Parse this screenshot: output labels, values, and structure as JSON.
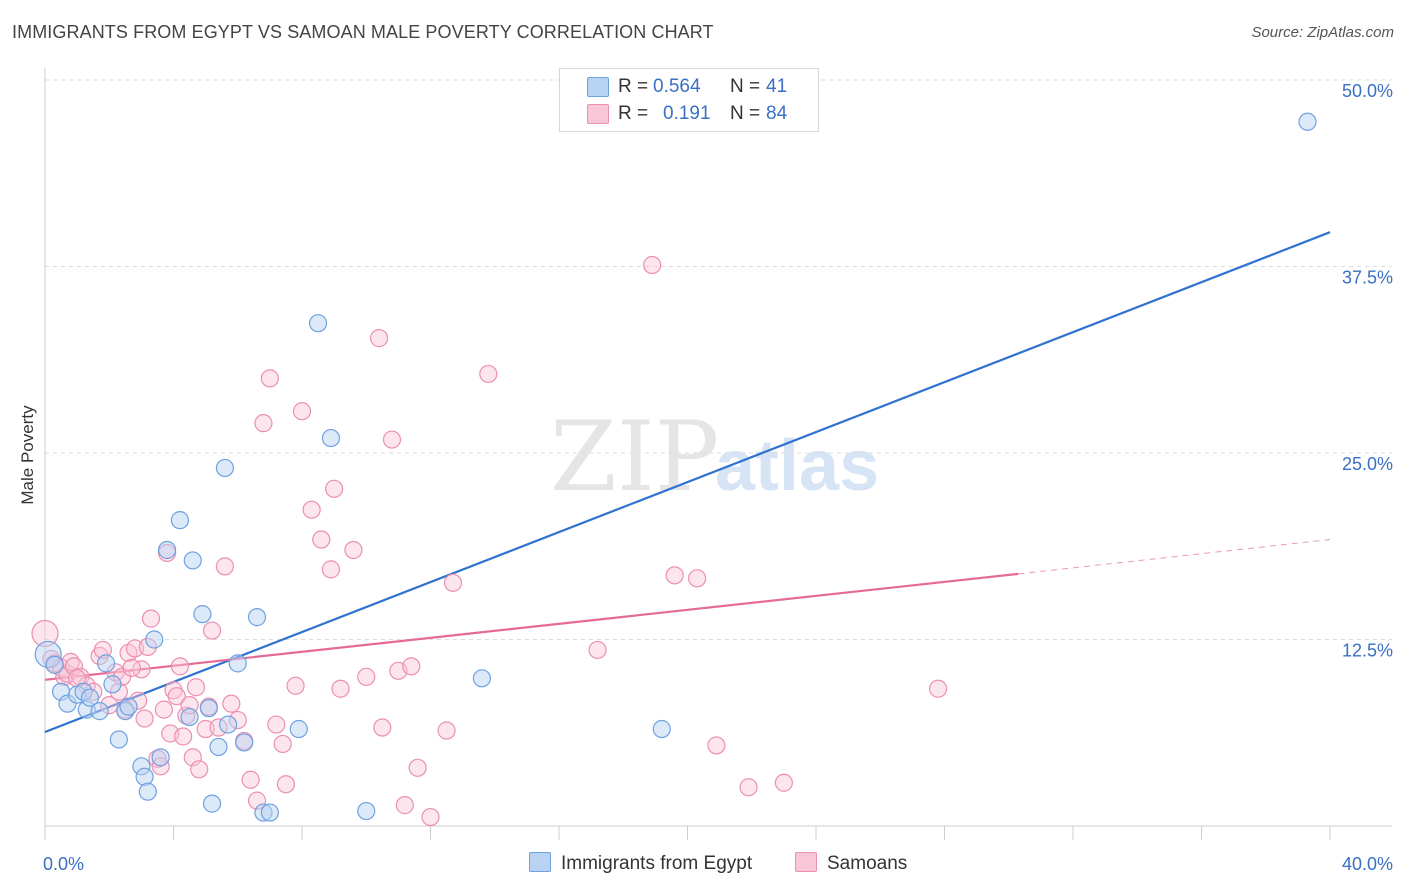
{
  "title": "IMMIGRANTS FROM EGYPT VS SAMOAN MALE POVERTY CORRELATION CHART",
  "source": "Source: ZipAtlas.com",
  "watermark": {
    "zip": "ZIP",
    "atlas": "atlas"
  },
  "colors": {
    "egypt": "#6fa1e0",
    "egypt_fill": "#b9d3f3",
    "egypt_line": "#2f72d0",
    "samoan": "#ec8fb0",
    "samoan_fill": "#f8c6d6",
    "samoan_line": "#e56b96",
    "tick_text": "#3a6fc4",
    "grid": "#dddddd"
  },
  "legend": {
    "rows": [
      {
        "r_label": "R =",
        "r_value": "0.564",
        "n_label": "N =",
        "n_value": "41"
      },
      {
        "r_label": "R =",
        "r_value": "0.191",
        "n_label": "N =",
        "n_value": "84"
      }
    ]
  },
  "bottom_legend": [
    "Immigrants from Egypt",
    "Samoans"
  ],
  "chart_data": {
    "type": "scatter",
    "title": "IMMIGRANTS FROM EGYPT VS SAMOAN MALE POVERTY CORRELATION CHART",
    "xlabel": "",
    "ylabel": "Male Poverty",
    "xlim": [
      0,
      40
    ],
    "ylim": [
      0,
      50
    ],
    "x_tick_labels": [
      "0.0%",
      "40.0%"
    ],
    "y_ticks": [
      12.5,
      25.0,
      37.5,
      50.0
    ],
    "y_tick_labels": [
      "12.5%",
      "25.0%",
      "37.5%",
      "50.0%"
    ],
    "grid": true,
    "legend_position": "top-center",
    "series": [
      {
        "name": "Immigrants from Egypt",
        "r": 0.564,
        "n": 41,
        "trend": {
          "x": [
            0,
            40
          ],
          "y": [
            6.3,
            39.8
          ]
        },
        "points": [
          {
            "x": 0.1,
            "y": 11.5,
            "s": 26
          },
          {
            "x": 0.3,
            "y": 10.8
          },
          {
            "x": 0.5,
            "y": 9.0
          },
          {
            "x": 0.7,
            "y": 8.2
          },
          {
            "x": 1.0,
            "y": 8.8
          },
          {
            "x": 1.2,
            "y": 9.0
          },
          {
            "x": 1.3,
            "y": 7.8
          },
          {
            "x": 1.4,
            "y": 8.6
          },
          {
            "x": 1.7,
            "y": 7.7
          },
          {
            "x": 1.9,
            "y": 10.9
          },
          {
            "x": 2.1,
            "y": 9.5
          },
          {
            "x": 2.3,
            "y": 5.8
          },
          {
            "x": 2.5,
            "y": 7.7
          },
          {
            "x": 2.6,
            "y": 8.0
          },
          {
            "x": 3.0,
            "y": 4.0
          },
          {
            "x": 3.1,
            "y": 3.3
          },
          {
            "x": 3.2,
            "y": 2.3
          },
          {
            "x": 3.4,
            "y": 12.5
          },
          {
            "x": 3.6,
            "y": 4.6
          },
          {
            "x": 3.8,
            "y": 18.5
          },
          {
            "x": 4.2,
            "y": 20.5
          },
          {
            "x": 4.5,
            "y": 7.3
          },
          {
            "x": 4.6,
            "y": 17.8
          },
          {
            "x": 4.9,
            "y": 14.2
          },
          {
            "x": 5.1,
            "y": 7.9
          },
          {
            "x": 5.2,
            "y": 1.5
          },
          {
            "x": 5.4,
            "y": 5.3
          },
          {
            "x": 5.6,
            "y": 24.0
          },
          {
            "x": 5.7,
            "y": 6.8
          },
          {
            "x": 6.0,
            "y": 10.9
          },
          {
            "x": 6.2,
            "y": 5.6
          },
          {
            "x": 6.6,
            "y": 14.0
          },
          {
            "x": 6.8,
            "y": 0.9
          },
          {
            "x": 7.0,
            "y": 0.9
          },
          {
            "x": 7.9,
            "y": 6.5
          },
          {
            "x": 8.5,
            "y": 33.7
          },
          {
            "x": 8.9,
            "y": 26.0
          },
          {
            "x": 10.0,
            "y": 1.0
          },
          {
            "x": 13.6,
            "y": 9.9
          },
          {
            "x": 19.2,
            "y": 6.5
          },
          {
            "x": 39.3,
            "y": 47.2
          }
        ]
      },
      {
        "name": "Samoans",
        "r": 0.191,
        "n": 84,
        "trend": {
          "x": [
            0,
            30.3
          ],
          "y": [
            9.8,
            16.9
          ]
        },
        "trend_dashed": {
          "x": [
            30.3,
            40
          ],
          "y": [
            16.9,
            19.2
          ]
        },
        "points": [
          {
            "x": 0.0,
            "y": 12.9,
            "s": 26
          },
          {
            "x": 0.2,
            "y": 11.2
          },
          {
            "x": 0.3,
            "y": 10.9
          },
          {
            "x": 0.5,
            "y": 10.6
          },
          {
            "x": 0.6,
            "y": 10.0
          },
          {
            "x": 0.7,
            "y": 10.2
          },
          {
            "x": 0.8,
            "y": 11.0
          },
          {
            "x": 0.9,
            "y": 10.7
          },
          {
            "x": 1.1,
            "y": 10.0
          },
          {
            "x": 1.3,
            "y": 9.4
          },
          {
            "x": 1.5,
            "y": 9.0
          },
          {
            "x": 1.7,
            "y": 11.4
          },
          {
            "x": 1.8,
            "y": 11.8
          },
          {
            "x": 2.0,
            "y": 8.1
          },
          {
            "x": 2.2,
            "y": 10.3
          },
          {
            "x": 2.3,
            "y": 9.0
          },
          {
            "x": 2.4,
            "y": 10.0
          },
          {
            "x": 2.5,
            "y": 7.8
          },
          {
            "x": 2.6,
            "y": 11.6
          },
          {
            "x": 2.8,
            "y": 11.9
          },
          {
            "x": 2.9,
            "y": 8.4
          },
          {
            "x": 3.0,
            "y": 10.5
          },
          {
            "x": 3.1,
            "y": 7.2
          },
          {
            "x": 3.2,
            "y": 12.0
          },
          {
            "x": 3.3,
            "y": 13.9
          },
          {
            "x": 3.5,
            "y": 4.5
          },
          {
            "x": 3.6,
            "y": 4.0
          },
          {
            "x": 3.7,
            "y": 7.8
          },
          {
            "x": 3.8,
            "y": 18.3
          },
          {
            "x": 3.9,
            "y": 6.2
          },
          {
            "x": 4.0,
            "y": 9.1
          },
          {
            "x": 4.1,
            "y": 8.7
          },
          {
            "x": 4.2,
            "y": 10.7
          },
          {
            "x": 4.3,
            "y": 6.0
          },
          {
            "x": 4.4,
            "y": 7.4
          },
          {
            "x": 4.5,
            "y": 8.1
          },
          {
            "x": 4.6,
            "y": 4.6
          },
          {
            "x": 4.8,
            "y": 3.8
          },
          {
            "x": 5.0,
            "y": 6.5
          },
          {
            "x": 5.1,
            "y": 8.0
          },
          {
            "x": 5.2,
            "y": 13.1
          },
          {
            "x": 5.4,
            "y": 6.6
          },
          {
            "x": 5.6,
            "y": 17.4
          },
          {
            "x": 5.8,
            "y": 8.2
          },
          {
            "x": 6.0,
            "y": 7.1
          },
          {
            "x": 6.2,
            "y": 5.7
          },
          {
            "x": 6.6,
            "y": 1.7
          },
          {
            "x": 6.8,
            "y": 27.0
          },
          {
            "x": 7.0,
            "y": 30.0
          },
          {
            "x": 7.2,
            "y": 6.8
          },
          {
            "x": 7.5,
            "y": 2.8
          },
          {
            "x": 7.8,
            "y": 9.4
          },
          {
            "x": 8.0,
            "y": 27.8
          },
          {
            "x": 8.3,
            "y": 21.2
          },
          {
            "x": 8.6,
            "y": 19.2
          },
          {
            "x": 8.9,
            "y": 17.2
          },
          {
            "x": 9.0,
            "y": 22.6
          },
          {
            "x": 9.2,
            "y": 9.2
          },
          {
            "x": 9.6,
            "y": 18.5
          },
          {
            "x": 10.0,
            "y": 10.0
          },
          {
            "x": 10.4,
            "y": 32.7
          },
          {
            "x": 10.5,
            "y": 6.6
          },
          {
            "x": 10.8,
            "y": 25.9
          },
          {
            "x": 11.0,
            "y": 10.4
          },
          {
            "x": 11.4,
            "y": 10.7
          },
          {
            "x": 11.6,
            "y": 3.9
          },
          {
            "x": 12.0,
            "y": 0.6
          },
          {
            "x": 12.5,
            "y": 6.4
          },
          {
            "x": 12.7,
            "y": 16.3
          },
          {
            "x": 13.8,
            "y": 30.3
          },
          {
            "x": 17.2,
            "y": 11.8
          },
          {
            "x": 18.9,
            "y": 37.6
          },
          {
            "x": 19.6,
            "y": 16.8
          },
          {
            "x": 20.3,
            "y": 16.6
          },
          {
            "x": 20.9,
            "y": 5.4
          },
          {
            "x": 21.9,
            "y": 2.6
          },
          {
            "x": 23.0,
            "y": 2.9
          },
          {
            "x": 27.8,
            "y": 9.2
          },
          {
            "x": 1.0,
            "y": 9.9
          },
          {
            "x": 2.7,
            "y": 10.6
          },
          {
            "x": 4.7,
            "y": 9.3
          },
          {
            "x": 6.4,
            "y": 3.1
          },
          {
            "x": 7.4,
            "y": 5.5
          },
          {
            "x": 11.2,
            "y": 1.4
          }
        ]
      }
    ]
  }
}
